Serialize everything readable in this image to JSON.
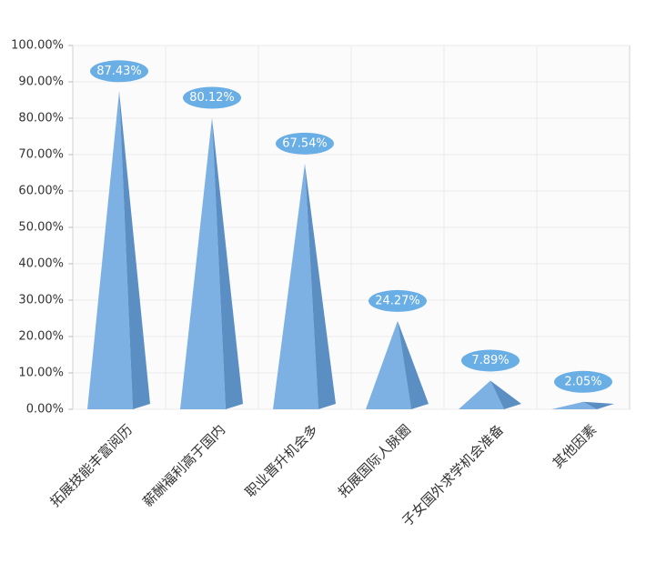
{
  "chart_data": {
    "type": "pyramid",
    "categories": [
      "拓展技能丰富阅历",
      "薪酬福利高于国内",
      "职业晋升机会多",
      "拓展国际人脉圈",
      "子女国外求学机会准备",
      "其他因素"
    ],
    "values": [
      87.43,
      80.12,
      67.54,
      24.27,
      7.89,
      2.05
    ],
    "value_labels": [
      "87.43%",
      "80.12%",
      "67.54%",
      "24.27%",
      "7.89%",
      "2.05%"
    ],
    "color": "#7db1e3",
    "shade_color": "#5b8fc4",
    "label_color": "#6aaee6",
    "ylim": [
      0,
      100
    ],
    "yticks": [
      {
        "value": 0,
        "label": "0.00%"
      },
      {
        "value": 10,
        "label": "10.00%"
      },
      {
        "value": 20,
        "label": "20.00%"
      },
      {
        "value": 30,
        "label": "30.00%"
      },
      {
        "value": 40,
        "label": "40.00%"
      },
      {
        "value": 50,
        "label": "50.00%"
      },
      {
        "value": 60,
        "label": "60.00%"
      },
      {
        "value": 70,
        "label": "70.00%"
      },
      {
        "value": 80,
        "label": "80.00%"
      },
      {
        "value": 90,
        "label": "90.00%"
      },
      {
        "value": 100,
        "label": "100.00%"
      }
    ],
    "grid": true
  }
}
